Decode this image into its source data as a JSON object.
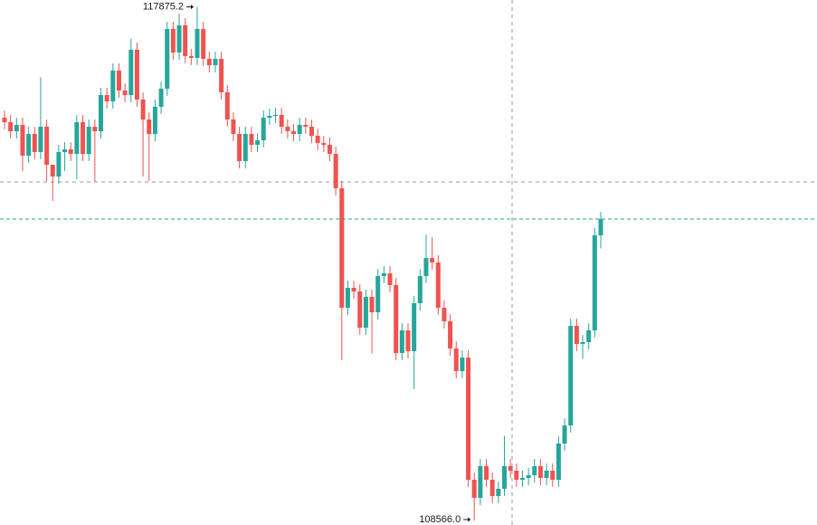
{
  "chart_data": {
    "type": "candlestick",
    "up_color": "#26a69a",
    "down_color": "#ef5350",
    "last_price_line_color": "#26a69a",
    "ylim": [
      108488,
      118000
    ],
    "high_label": "117875.2",
    "low_label": "108566.0",
    "open": [
      115868,
      115786,
      115622,
      115737,
      115179,
      115573,
      115245,
      115704,
      115015,
      114802,
      115245,
      115294,
      115212,
      115786,
      115212,
      115704,
      115622,
      116278,
      116163,
      116721,
      116360,
      116278,
      117098,
      116196,
      115835,
      115573,
      116065,
      116393,
      117475,
      117049,
      117541,
      116983,
      116950,
      117475,
      116934,
      116819,
      116934,
      116327,
      115835,
      115573,
      115081,
      115573,
      115376,
      115458,
      115868,
      115901,
      115917,
      115704,
      115622,
      115573,
      115737,
      115704,
      115540,
      115409,
      115376,
      115212,
      114589,
      112424,
      112785,
      112719,
      112063,
      112621,
      112342,
      112998,
      113047,
      112834,
      111604,
      112014,
      111637,
      112506,
      112998,
      113326,
      113244,
      112424,
      112178,
      111686,
      111276,
      111522,
      109308,
      108980,
      109554,
      109308,
      109013,
      109144,
      109554,
      109472,
      109308,
      109341,
      109390,
      109554,
      109341,
      109472,
      109308,
      109964,
      110292,
      112096,
      111768,
      111801,
      112014,
      113736
    ],
    "high": [
      115998,
      115916,
      115867,
      115867,
      115703,
      115703,
      116600,
      115834,
      114932,
      115375,
      115424,
      115424,
      115916,
      115916,
      115834,
      115834,
      116408,
      116408,
      116851,
      116851,
      116490,
      117300,
      117228,
      116326,
      115965,
      116195,
      116523,
      117605,
      117605,
      117750,
      117671,
      117113,
      117875.2,
      117605,
      117064,
      117064,
      117064,
      116457,
      115965,
      115703,
      115703,
      115703,
      115588,
      115998,
      116031,
      116047,
      116047,
      115834,
      115752,
      115867,
      115867,
      115834,
      115670,
      115539,
      115506,
      115342,
      114719,
      112915,
      112915,
      112849,
      112751,
      112751,
      113128,
      113177,
      113177,
      112964,
      112144,
      112144,
      112636,
      113128,
      113750,
      113700,
      113374,
      112554,
      112308,
      111816,
      111652,
      111652,
      109438,
      109684,
      109684,
      109438,
      109274,
      110100,
      109684,
      109602,
      109471,
      109520,
      109684,
      109684,
      109602,
      109602,
      110094,
      110422,
      112226,
      112226,
      111931,
      112144,
      113866,
      114161
    ],
    "low": [
      115656,
      115492,
      115492,
      114900,
      115049,
      115115,
      115115,
      114720,
      114360,
      114672,
      114900,
      115082,
      114750,
      115082,
      115082,
      114700,
      115492,
      116033,
      116033,
      116230,
      116148,
      116148,
      116066,
      114800,
      114720,
      115443,
      115935,
      116263,
      116919,
      116919,
      116853,
      116820,
      116820,
      116804,
      116689,
      116689,
      116197,
      115705,
      115443,
      114951,
      114951,
      115246,
      115246,
      115328,
      115738,
      115771,
      115574,
      115492,
      115443,
      115443,
      115574,
      115410,
      115279,
      115246,
      115082,
      114459,
      111473,
      112294,
      112589,
      111933,
      111933,
      111600,
      112212,
      112868,
      112704,
      111474,
      111474,
      111507,
      110950,
      112376,
      112868,
      113114,
      112294,
      112048,
      111556,
      111146,
      111146,
      109178,
      108566.0,
      108850,
      109178,
      108883,
      108883,
      109014,
      109342,
      109178,
      109178,
      109211,
      109260,
      109211,
      109211,
      109178,
      109178,
      109834,
      110162,
      111638,
      111500,
      111671,
      111884,
      113500
    ],
    "close": [
      115786,
      115622,
      115737,
      115179,
      115573,
      115245,
      115704,
      115015,
      114802,
      115245,
      115294,
      115212,
      115786,
      115212,
      115704,
      115622,
      116278,
      116163,
      116721,
      116360,
      116278,
      117098,
      116196,
      115835,
      115573,
      116065,
      116393,
      117475,
      117049,
      117541,
      116983,
      116950,
      117475,
      116934,
      116819,
      116934,
      116327,
      115835,
      115573,
      115081,
      115573,
      115376,
      115458,
      115868,
      115901,
      115917,
      115704,
      115622,
      115573,
      115737,
      115704,
      115540,
      115409,
      115376,
      115212,
      114589,
      112424,
      112785,
      112719,
      112063,
      112621,
      112342,
      112998,
      113047,
      112834,
      111604,
      112014,
      111637,
      112506,
      112998,
      113326,
      113244,
      112424,
      112178,
      111686,
      111276,
      111522,
      109308,
      108980,
      109554,
      109308,
      109013,
      109144,
      109554,
      109472,
      109308,
      109341,
      109390,
      109554,
      109341,
      109472,
      109308,
      109964,
      110292,
      112096,
      111768,
      111801,
      112014,
      113736,
      114031
    ]
  }
}
